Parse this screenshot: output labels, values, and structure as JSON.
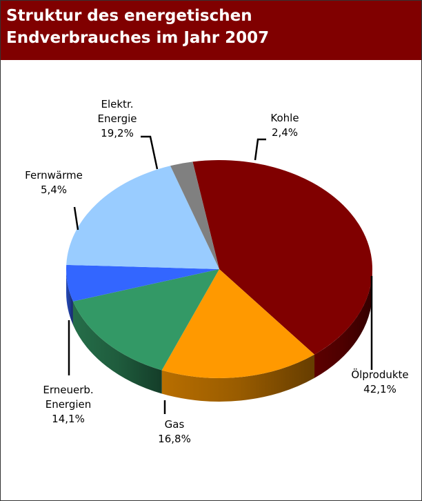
{
  "header": {
    "title_line1": "Struktur des energetischen",
    "title_line2": "Endverbrauches im Jahr 2007",
    "background_color": "#800000"
  },
  "chart_data": {
    "type": "pie",
    "title": "Struktur des energetischen Endverbrauches im Jahr 2007",
    "style": "3d",
    "start_category": "Ölprodukte",
    "unit": "%",
    "categories": [
      "Ölprodukte",
      "Gas",
      "Erneuerb. Energien",
      "Fernwärme",
      "Elektr. Energie",
      "Kohle"
    ],
    "values": [
      42.1,
      16.8,
      14.1,
      5.4,
      19.2,
      2.4
    ],
    "labels": [
      {
        "lines": [
          "Ölprodukte"
        ],
        "value": "42,1%"
      },
      {
        "lines": [
          "Gas"
        ],
        "value": "16,8%"
      },
      {
        "lines": [
          "Erneuerb.",
          "Energien"
        ],
        "value": "14,1%"
      },
      {
        "lines": [
          "Fernwärme"
        ],
        "value": "5,4%"
      },
      {
        "lines": [
          "Elektr.",
          "Energie"
        ],
        "value": "19,2%"
      },
      {
        "lines": [
          "Kohle"
        ],
        "value": "2,4%"
      }
    ],
    "colors": [
      "#800000",
      "#ff9900",
      "#339966",
      "#3366ff",
      "#99ccff",
      "#808080"
    ]
  }
}
